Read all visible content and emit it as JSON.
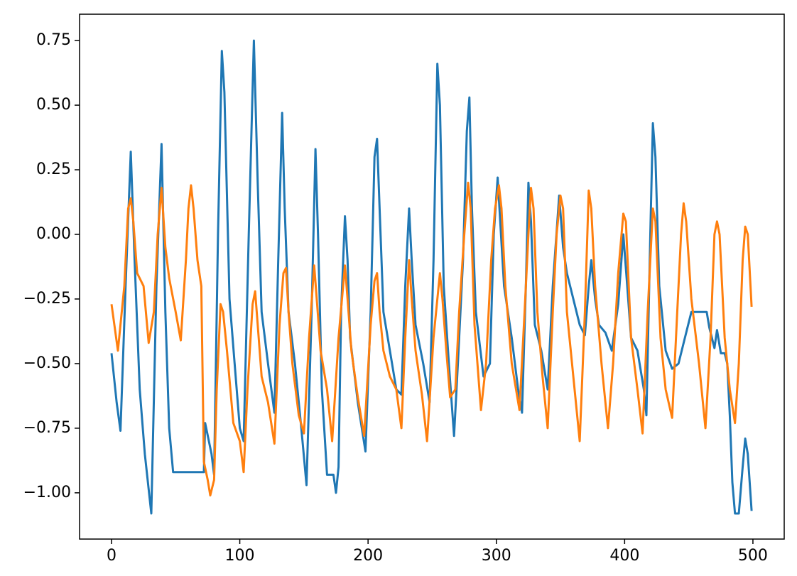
{
  "chart_data": {
    "type": "line",
    "xlim": [
      -24.9,
      524.4
    ],
    "ylim": [
      -1.179,
      0.852
    ],
    "xticks": [
      0,
      100,
      200,
      300,
      400,
      500
    ],
    "yticks": [
      {
        "value": -1.0,
        "label": "−1.00"
      },
      {
        "value": -0.75,
        "label": "−0.75"
      },
      {
        "value": -0.5,
        "label": "−0.50"
      },
      {
        "value": -0.25,
        "label": "−0.25"
      },
      {
        "value": 0.0,
        "label": "0.00"
      },
      {
        "value": 0.25,
        "label": "0.25"
      },
      {
        "value": 0.5,
        "label": "0.50"
      },
      {
        "value": 0.75,
        "label": "0.75"
      }
    ],
    "series": [
      {
        "color": "#1f77b4",
        "x": [
          0,
          4,
          7,
          11,
          15,
          18,
          22,
          26,
          31,
          35,
          39,
          42,
          45,
          48,
          72,
          73,
          78,
          80,
          83,
          86,
          88,
          92,
          96,
          100,
          103,
          107,
          111,
          114,
          117,
          122,
          127,
          130,
          133,
          135,
          138,
          143,
          148,
          152,
          156,
          159,
          161,
          164,
          168,
          173,
          175,
          177,
          179,
          182,
          184,
          186,
          192,
          198,
          202,
          205,
          207,
          209,
          212,
          217,
          222,
          226,
          229,
          232,
          234,
          237,
          243,
          248,
          251,
          254,
          256,
          259,
          263,
          267,
          270,
          274,
          277,
          279,
          281,
          284,
          290,
          295,
          298,
          301,
          303,
          306,
          312,
          317,
          320,
          323,
          325,
          327,
          330,
          335,
          340,
          344,
          349,
          352,
          355,
          360,
          365,
          369,
          372,
          374,
          377,
          380,
          385,
          390,
          395,
          399,
          402,
          405,
          410,
          415,
          417,
          420,
          422,
          424,
          427,
          432,
          437,
          442,
          447,
          452,
          464,
          466,
          470,
          472,
          475,
          478,
          480,
          482,
          484,
          486,
          489,
          492,
          494,
          496,
          499
        ],
        "values": [
          -0.46,
          -0.65,
          -0.76,
          -0.2,
          0.32,
          -0.1,
          -0.6,
          -0.85,
          -1.08,
          -0.2,
          0.35,
          -0.3,
          -0.75,
          -0.92,
          -0.92,
          -0.73,
          -0.85,
          -0.93,
          0.0,
          0.71,
          0.55,
          -0.25,
          -0.5,
          -0.75,
          -0.8,
          0.0,
          0.75,
          0.2,
          -0.3,
          -0.5,
          -0.69,
          -0.1,
          0.47,
          0.1,
          -0.3,
          -0.5,
          -0.75,
          -0.97,
          -0.3,
          0.33,
          0.0,
          -0.6,
          -0.93,
          -0.93,
          -1.0,
          -0.9,
          -0.3,
          0.07,
          -0.1,
          -0.4,
          -0.65,
          -0.84,
          -0.3,
          0.3,
          0.37,
          0.1,
          -0.3,
          -0.45,
          -0.6,
          -0.62,
          -0.2,
          0.1,
          -0.1,
          -0.35,
          -0.5,
          -0.65,
          -0.1,
          0.66,
          0.5,
          -0.2,
          -0.5,
          -0.78,
          -0.5,
          -0.1,
          0.4,
          0.53,
          0.1,
          -0.3,
          -0.55,
          -0.5,
          0.0,
          0.22,
          0.05,
          -0.2,
          -0.4,
          -0.6,
          -0.69,
          -0.2,
          0.2,
          0.05,
          -0.35,
          -0.45,
          -0.6,
          -0.2,
          0.15,
          -0.05,
          -0.15,
          -0.25,
          -0.35,
          -0.39,
          -0.2,
          -0.1,
          -0.25,
          -0.35,
          -0.38,
          -0.45,
          -0.27,
          0.0,
          -0.2,
          -0.4,
          -0.45,
          -0.6,
          -0.7,
          0.0,
          0.43,
          0.3,
          -0.2,
          -0.45,
          -0.52,
          -0.5,
          -0.4,
          -0.3,
          -0.3,
          -0.36,
          -0.44,
          -0.37,
          -0.46,
          -0.46,
          -0.5,
          -0.7,
          -0.96,
          -1.08,
          -1.08,
          -0.9,
          -0.79,
          -0.85,
          -1.07
        ]
      },
      {
        "color": "#ff7f0e",
        "x": [
          0,
          5,
          10,
          13,
          15,
          17,
          20,
          25,
          29,
          33,
          36,
          39,
          42,
          45,
          50,
          54,
          58,
          60,
          62,
          64,
          67,
          70,
          72,
          75,
          77,
          80,
          82,
          85,
          87,
          90,
          95,
          100,
          103,
          106,
          110,
          112,
          114,
          117,
          122,
          127,
          131,
          134,
          136,
          138,
          141,
          146,
          150,
          154,
          158,
          160,
          163,
          168,
          172,
          177,
          182,
          184,
          187,
          192,
          197,
          202,
          205,
          207,
          209,
          212,
          217,
          222,
          226,
          229,
          232,
          234,
          237,
          242,
          246,
          251,
          256,
          258,
          261,
          264,
          268,
          271,
          275,
          278,
          280,
          283,
          288,
          292,
          296,
          299,
          302,
          304,
          307,
          312,
          318,
          322,
          325,
          327,
          329,
          332,
          336,
          340,
          344,
          347,
          350,
          352,
          355,
          360,
          365,
          369,
          372,
          374,
          377,
          382,
          387,
          391,
          395,
          399,
          401,
          405,
          410,
          414,
          418,
          422,
          424,
          428,
          432,
          437,
          441,
          444,
          446,
          448,
          452,
          458,
          463,
          467,
          470,
          472,
          474,
          478,
          482,
          486,
          489,
          492,
          494,
          496,
          499
        ],
        "values": [
          -0.27,
          -0.45,
          -0.2,
          0.1,
          0.14,
          0.05,
          -0.15,
          -0.2,
          -0.42,
          -0.3,
          0.0,
          0.18,
          -0.05,
          -0.17,
          -0.3,
          -0.41,
          -0.1,
          0.1,
          0.19,
          0.1,
          -0.1,
          -0.2,
          -0.88,
          -0.95,
          -1.01,
          -0.95,
          -0.6,
          -0.27,
          -0.3,
          -0.45,
          -0.73,
          -0.8,
          -0.92,
          -0.6,
          -0.27,
          -0.22,
          -0.35,
          -0.55,
          -0.65,
          -0.81,
          -0.35,
          -0.15,
          -0.13,
          -0.3,
          -0.5,
          -0.7,
          -0.77,
          -0.4,
          -0.12,
          -0.25,
          -0.45,
          -0.6,
          -0.8,
          -0.4,
          -0.12,
          -0.25,
          -0.45,
          -0.63,
          -0.78,
          -0.35,
          -0.18,
          -0.15,
          -0.3,
          -0.45,
          -0.55,
          -0.6,
          -0.75,
          -0.4,
          -0.1,
          -0.25,
          -0.45,
          -0.62,
          -0.8,
          -0.4,
          -0.15,
          -0.25,
          -0.45,
          -0.63,
          -0.6,
          -0.3,
          0.0,
          0.2,
          0.1,
          -0.35,
          -0.68,
          -0.5,
          -0.1,
          0.1,
          0.19,
          0.1,
          -0.2,
          -0.5,
          -0.68,
          -0.3,
          0.0,
          0.18,
          0.1,
          -0.3,
          -0.55,
          -0.75,
          -0.3,
          0.0,
          0.15,
          0.1,
          -0.3,
          -0.55,
          -0.8,
          -0.3,
          0.17,
          0.1,
          -0.2,
          -0.5,
          -0.75,
          -0.5,
          -0.15,
          0.08,
          0.05,
          -0.4,
          -0.6,
          -0.77,
          -0.3,
          0.1,
          0.05,
          -0.4,
          -0.6,
          -0.71,
          -0.3,
          0.0,
          0.12,
          0.05,
          -0.25,
          -0.5,
          -0.75,
          -0.4,
          0.0,
          0.05,
          0.0,
          -0.4,
          -0.6,
          -0.73,
          -0.5,
          -0.1,
          0.03,
          0.0,
          -0.28
        ]
      }
    ]
  }
}
